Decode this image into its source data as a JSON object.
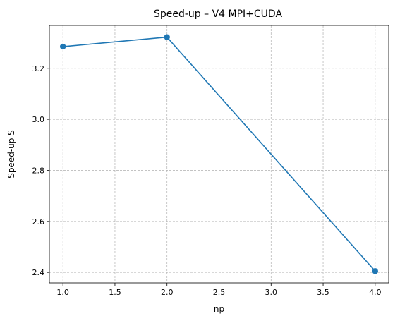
{
  "chart_data": {
    "type": "line",
    "title": "Speed-up – V4 MPI+CUDA",
    "xlabel": "np",
    "ylabel": "Speed-up S",
    "x": [
      1.0,
      2.0,
      4.0
    ],
    "series": [
      {
        "values": [
          3.285,
          3.322,
          2.405
        ],
        "color": "#1f77b4",
        "marker": "circle"
      }
    ],
    "xlim": [
      0.87,
      4.13
    ],
    "ylim": [
      2.359,
      3.368
    ],
    "xticks": [
      1.0,
      1.5,
      2.0,
      2.5,
      3.0,
      3.5,
      4.0
    ],
    "xtick_labels": [
      "1.0",
      "1.5",
      "2.0",
      "2.5",
      "3.0",
      "3.5",
      "4.0"
    ],
    "yticks": [
      2.4,
      2.6,
      2.8,
      3.0,
      3.2
    ],
    "ytick_labels": [
      "2.4",
      "2.6",
      "2.8",
      "3.0",
      "3.2"
    ],
    "grid": true,
    "grid_style": "dashed",
    "legend": false
  }
}
